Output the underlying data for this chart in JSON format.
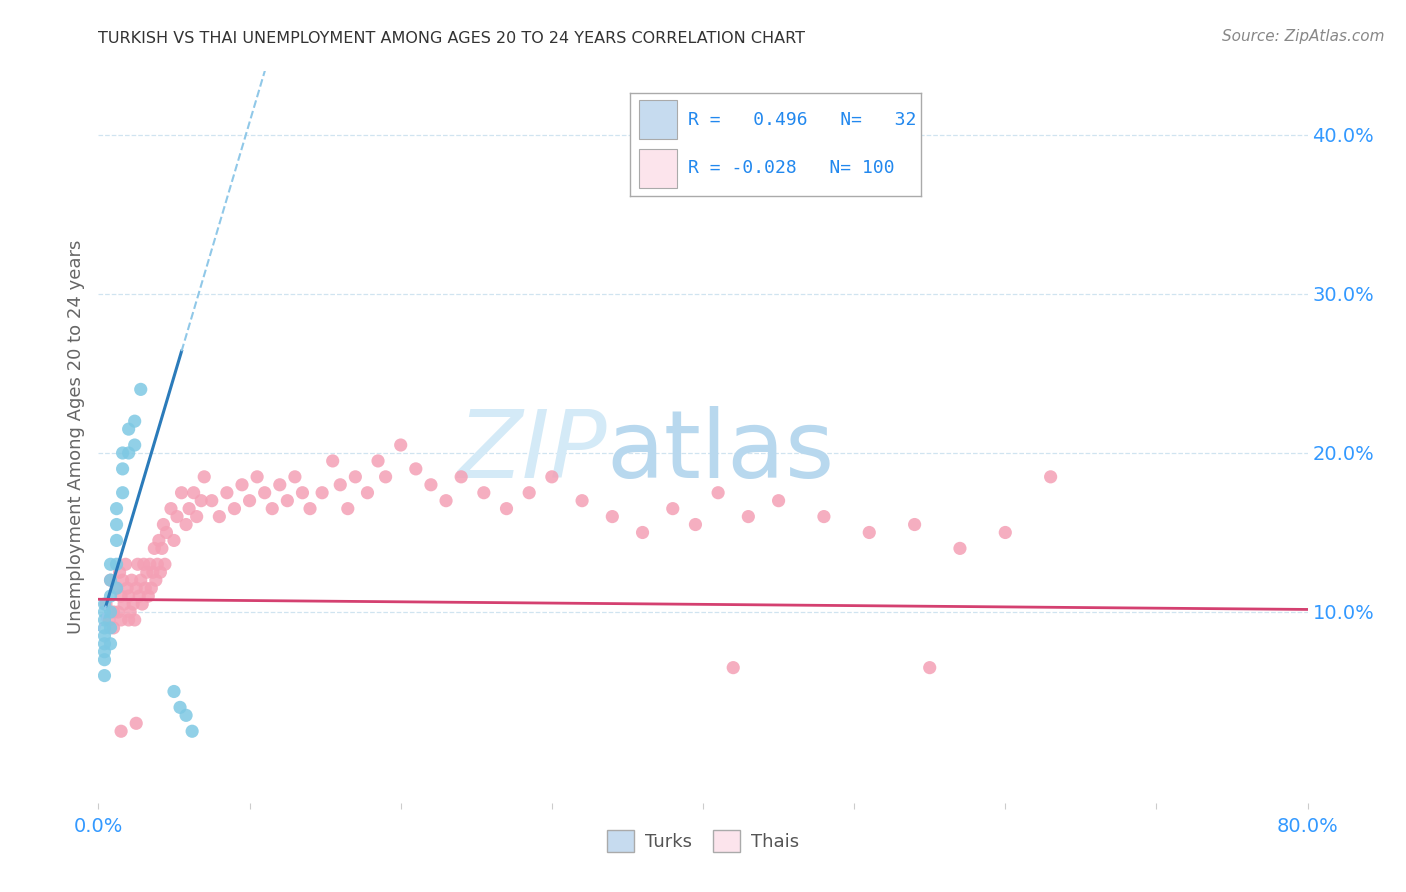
{
  "title": "TURKISH VS THAI UNEMPLOYMENT AMONG AGES 20 TO 24 YEARS CORRELATION CHART",
  "source": "Source: ZipAtlas.com",
  "ylabel": "Unemployment Among Ages 20 to 24 years",
  "xlim": [
    0.0,
    0.8
  ],
  "ylim": [
    -0.02,
    0.44
  ],
  "y_ticks_right": [
    0.1,
    0.2,
    0.3,
    0.4
  ],
  "y_tick_labels_right": [
    "10.0%",
    "20.0%",
    "30.0%",
    "40.0%"
  ],
  "turks_R": 0.496,
  "turks_N": 32,
  "thais_R": -0.028,
  "thais_N": 100,
  "blue_scatter": "#7ec8e3",
  "pink_scatter": "#f4a0b5",
  "blue_light": "#c6dbef",
  "pink_light": "#fce4ec",
  "trend_blue": "#2b7bba",
  "trend_pink": "#d44070",
  "trend_blue_dash": "#90c8e8",
  "watermark_color": "#d4eaf7",
  "turks_x": [
    0.004,
    0.004,
    0.004,
    0.004,
    0.004,
    0.004,
    0.004,
    0.004,
    0.004,
    0.008,
    0.008,
    0.008,
    0.008,
    0.008,
    0.008,
    0.012,
    0.012,
    0.012,
    0.012,
    0.012,
    0.016,
    0.016,
    0.016,
    0.02,
    0.02,
    0.024,
    0.024,
    0.028,
    0.05,
    0.054,
    0.058,
    0.062
  ],
  "turks_y": [
    0.105,
    0.1,
    0.095,
    0.09,
    0.085,
    0.08,
    0.075,
    0.07,
    0.06,
    0.13,
    0.12,
    0.11,
    0.1,
    0.09,
    0.08,
    0.165,
    0.155,
    0.145,
    0.13,
    0.115,
    0.2,
    0.19,
    0.175,
    0.215,
    0.2,
    0.22,
    0.205,
    0.24,
    0.05,
    0.04,
    0.035,
    0.025
  ],
  "thais_x": [
    0.005,
    0.007,
    0.008,
    0.01,
    0.01,
    0.012,
    0.013,
    0.014,
    0.015,
    0.015,
    0.016,
    0.017,
    0.018,
    0.019,
    0.02,
    0.02,
    0.021,
    0.022,
    0.023,
    0.024,
    0.025,
    0.026,
    0.027,
    0.028,
    0.029,
    0.03,
    0.031,
    0.032,
    0.033,
    0.034,
    0.035,
    0.036,
    0.037,
    0.038,
    0.039,
    0.04,
    0.041,
    0.042,
    0.043,
    0.044,
    0.045,
    0.048,
    0.05,
    0.052,
    0.055,
    0.058,
    0.06,
    0.063,
    0.065,
    0.068,
    0.07,
    0.075,
    0.08,
    0.085,
    0.09,
    0.095,
    0.1,
    0.105,
    0.11,
    0.115,
    0.12,
    0.125,
    0.13,
    0.135,
    0.14,
    0.148,
    0.155,
    0.16,
    0.165,
    0.17,
    0.178,
    0.185,
    0.19,
    0.2,
    0.21,
    0.22,
    0.23,
    0.24,
    0.255,
    0.27,
    0.285,
    0.3,
    0.32,
    0.34,
    0.36,
    0.38,
    0.395,
    0.41,
    0.43,
    0.45,
    0.48,
    0.51,
    0.54,
    0.57,
    0.6,
    0.63,
    0.015,
    0.025,
    0.42,
    0.55
  ],
  "thais_y": [
    0.105,
    0.095,
    0.12,
    0.1,
    0.09,
    0.115,
    0.1,
    0.125,
    0.095,
    0.11,
    0.12,
    0.105,
    0.13,
    0.115,
    0.095,
    0.11,
    0.1,
    0.12,
    0.105,
    0.095,
    0.115,
    0.13,
    0.11,
    0.12,
    0.105,
    0.13,
    0.115,
    0.125,
    0.11,
    0.13,
    0.115,
    0.125,
    0.14,
    0.12,
    0.13,
    0.145,
    0.125,
    0.14,
    0.155,
    0.13,
    0.15,
    0.165,
    0.145,
    0.16,
    0.175,
    0.155,
    0.165,
    0.175,
    0.16,
    0.17,
    0.185,
    0.17,
    0.16,
    0.175,
    0.165,
    0.18,
    0.17,
    0.185,
    0.175,
    0.165,
    0.18,
    0.17,
    0.185,
    0.175,
    0.165,
    0.175,
    0.195,
    0.18,
    0.165,
    0.185,
    0.175,
    0.195,
    0.185,
    0.205,
    0.19,
    0.18,
    0.17,
    0.185,
    0.175,
    0.165,
    0.175,
    0.185,
    0.17,
    0.16,
    0.15,
    0.165,
    0.155,
    0.175,
    0.16,
    0.17,
    0.16,
    0.15,
    0.155,
    0.14,
    0.15,
    0.185,
    0.025,
    0.03,
    0.065,
    0.065
  ]
}
